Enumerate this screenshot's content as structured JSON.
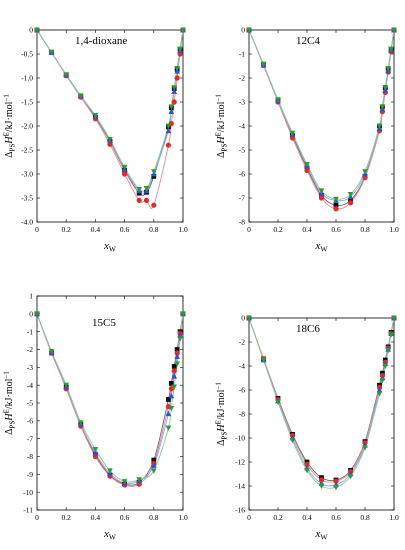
{
  "colors": {
    "black": "#111111",
    "red": "#e32a2a",
    "blue": "#2f4fd8",
    "green": "#2b9a3a",
    "fit_black": "#666666",
    "fit_red": "#e88a8a",
    "fit_blue": "#8ea2e8",
    "fit_green": "#8cc79a",
    "fit_dark": "#3a6b3a"
  },
  "shared_labels": {
    "xlabel_main": "x",
    "xlabel_sub": "W",
    "ylabel_delta": "Δ",
    "ylabel_sub": "PS",
    "ylabel_main": "H",
    "ylabel_sup": "E",
    "ylabel_unit": "/kJ·mol",
    "ylabel_unit_sup": "−1"
  },
  "chart_data": [
    {
      "type": "scatter",
      "title": "1,4-dioxane",
      "xlim": [
        0,
        1
      ],
      "ylim": [
        -4.0,
        0.0
      ],
      "x_ticks": [
        "0",
        "0.2",
        "0.4",
        "0.6",
        "0.8",
        "1.0"
      ],
      "x_tick_values": [
        0,
        0.2,
        0.4,
        0.6,
        0.8,
        1.0
      ],
      "y_ticks": [
        "0",
        "-0.5",
        "-1.0",
        "-1.5",
        "-2.0",
        "-2.5",
        "-3.0",
        "-3.5",
        "-4.0"
      ],
      "y_tick_values": [
        0,
        -0.5,
        -1.0,
        -1.5,
        -2.0,
        -2.5,
        -3.0,
        -3.5,
        -4.0
      ],
      "x": [
        0,
        0.1,
        0.2,
        0.3,
        0.4,
        0.5,
        0.6,
        0.7,
        0.75,
        0.8,
        0.9,
        0.92,
        0.94,
        0.96,
        0.98,
        1.0
      ],
      "series": [
        {
          "marker": "square",
          "color": "black",
          "values": [
            0,
            -0.47,
            -0.94,
            -1.38,
            -1.82,
            -2.32,
            -2.92,
            -3.4,
            -3.38,
            -3.05,
            -2.02,
            -1.62,
            -1.22,
            -0.82,
            -0.4,
            0
          ]
        },
        {
          "marker": "circle",
          "color": "red",
          "values": [
            0,
            -0.47,
            -0.95,
            -1.4,
            -1.85,
            -2.38,
            -3.0,
            -3.55,
            -3.55,
            -3.65,
            -2.4,
            -1.95,
            -1.5,
            -1.0,
            -0.5,
            0
          ]
        },
        {
          "marker": "triangle-up",
          "color": "blue",
          "values": [
            0,
            -0.47,
            -0.94,
            -1.38,
            -1.8,
            -2.3,
            -2.9,
            -3.35,
            -3.35,
            -3.0,
            -2.1,
            -1.7,
            -1.28,
            -0.86,
            -0.43,
            0
          ]
        },
        {
          "marker": "triangle-down",
          "color": "green",
          "values": [
            0,
            -0.46,
            -0.93,
            -1.37,
            -1.78,
            -2.28,
            -2.86,
            -3.32,
            -3.3,
            -2.95,
            -2.0,
            -1.6,
            -1.2,
            -0.8,
            -0.4,
            0
          ]
        }
      ]
    },
    {
      "type": "scatter",
      "title": "12C4",
      "xlim": [
        0,
        1
      ],
      "ylim": [
        -8,
        0
      ],
      "x_ticks": [
        "0",
        "0.2",
        "0.4",
        "0.6",
        "0.8",
        "1.0"
      ],
      "x_tick_values": [
        0,
        0.2,
        0.4,
        0.6,
        0.8,
        1.0
      ],
      "y_ticks": [
        "0",
        "-1",
        "-2",
        "-3",
        "-4",
        "-5",
        "-6",
        "-7",
        "-8"
      ],
      "y_tick_values": [
        0,
        -1,
        -2,
        -3,
        -4,
        -5,
        -6,
        -7,
        -8
      ],
      "x": [
        0,
        0.1,
        0.2,
        0.3,
        0.4,
        0.5,
        0.6,
        0.7,
        0.8,
        0.9,
        0.92,
        0.94,
        0.96,
        0.98,
        1.0
      ],
      "series": [
        {
          "marker": "square",
          "color": "black",
          "values": [
            0,
            -1.45,
            -2.95,
            -4.4,
            -5.75,
            -6.9,
            -7.3,
            -7.1,
            -6.1,
            -4.0,
            -3.2,
            -2.4,
            -1.6,
            -0.8,
            0
          ]
        },
        {
          "marker": "circle",
          "color": "red",
          "values": [
            0,
            -1.48,
            -3.0,
            -4.5,
            -5.85,
            -7.0,
            -7.45,
            -7.2,
            -6.15,
            -4.2,
            -3.4,
            -2.6,
            -1.75,
            -0.9,
            0
          ]
        },
        {
          "marker": "triangle-up",
          "color": "blue",
          "values": [
            0,
            -1.45,
            -2.95,
            -4.35,
            -5.65,
            -6.8,
            -7.1,
            -6.95,
            -6.0,
            -4.1,
            -3.3,
            -2.5,
            -1.7,
            -0.85,
            0
          ]
        },
        {
          "marker": "triangle-down",
          "color": "green",
          "values": [
            0,
            -1.42,
            -2.9,
            -4.3,
            -5.6,
            -6.7,
            -7.05,
            -6.85,
            -5.9,
            -4.0,
            -3.2,
            -2.4,
            -1.6,
            -0.8,
            0
          ]
        }
      ]
    },
    {
      "type": "scatter",
      "title": "15C5",
      "xlim": [
        0,
        1
      ],
      "ylim": [
        -11,
        1
      ],
      "x_ticks": [
        "0",
        "0.2",
        "0.4",
        "0.6",
        "0.8",
        "1.0"
      ],
      "x_tick_values": [
        0,
        0.2,
        0.4,
        0.6,
        0.8,
        1.0
      ],
      "y_ticks": [
        "1",
        "0",
        "-1",
        "-2",
        "-3",
        "-4",
        "-5",
        "-6",
        "-7",
        "-8",
        "-9",
        "-10",
        "-11"
      ],
      "y_tick_values": [
        1,
        0,
        -1,
        -2,
        -3,
        -4,
        -5,
        -6,
        -7,
        -8,
        -9,
        -10,
        -11
      ],
      "x": [
        0,
        0.1,
        0.2,
        0.3,
        0.4,
        0.5,
        0.6,
        0.7,
        0.8,
        0.9,
        0.92,
        0.94,
        0.96,
        0.98,
        1.0
      ],
      "series": [
        {
          "marker": "square",
          "color": "black",
          "values": [
            0,
            -2.2,
            -4.1,
            -6.2,
            -7.9,
            -9.05,
            -9.55,
            -9.45,
            -8.2,
            -4.8,
            -3.9,
            -2.95,
            -2.0,
            -1.0,
            0
          ]
        },
        {
          "marker": "circle",
          "color": "red",
          "values": [
            0,
            -2.2,
            -4.2,
            -6.3,
            -8.0,
            -9.1,
            -9.6,
            -9.55,
            -8.4,
            -5.2,
            -4.2,
            -3.2,
            -2.2,
            -1.1,
            0
          ]
        },
        {
          "marker": "triangle-up",
          "color": "blue",
          "values": [
            0,
            -2.15,
            -4.1,
            -6.2,
            -7.8,
            -8.95,
            -9.5,
            -9.35,
            -8.5,
            -5.6,
            -4.6,
            -3.5,
            -2.4,
            -1.2,
            0
          ]
        },
        {
          "marker": "triangle-down",
          "color": "green",
          "values": [
            0,
            -2.1,
            -4.0,
            -6.1,
            -7.6,
            -8.8,
            -9.4,
            -9.3,
            -8.8,
            -6.4,
            -5.3,
            -4.1,
            -2.8,
            -1.4,
            0
          ]
        }
      ]
    },
    {
      "type": "scatter",
      "title": "18C6",
      "xlim": [
        0,
        1
      ],
      "ylim": [
        -16,
        0
      ],
      "x_ticks": [
        "0",
        "0.2",
        "0.4",
        "0.6",
        "0.8",
        "1.0"
      ],
      "x_tick_values": [
        0,
        0.2,
        0.4,
        0.6,
        0.8,
        1.0
      ],
      "y_ticks": [
        "0",
        "-2",
        "-4",
        "-6",
        "-8",
        "-10",
        "-12",
        "-14",
        "-16"
      ],
      "y_tick_values": [
        0,
        -2,
        -4,
        -6,
        -8,
        -10,
        -12,
        -14,
        -16
      ],
      "x": [
        0,
        0.1,
        0.2,
        0.3,
        0.4,
        0.5,
        0.6,
        0.7,
        0.8,
        0.9,
        0.92,
        0.94,
        0.96,
        0.98,
        1.0
      ],
      "series": [
        {
          "marker": "square",
          "color": "black",
          "values": [
            0,
            -3.4,
            -6.7,
            -9.7,
            -12.0,
            -13.3,
            -13.5,
            -12.7,
            -10.3,
            -5.6,
            -4.6,
            -3.5,
            -2.4,
            -1.2,
            0
          ]
        },
        {
          "marker": "circle",
          "color": "red",
          "values": [
            0,
            -3.4,
            -6.8,
            -9.8,
            -12.2,
            -13.5,
            -13.6,
            -12.8,
            -10.4,
            -5.8,
            -4.8,
            -3.7,
            -2.5,
            -1.3,
            0
          ]
        },
        {
          "marker": "triangle-up",
          "color": "blue",
          "values": [
            0,
            -3.5,
            -6.9,
            -10.0,
            -12.5,
            -13.8,
            -13.9,
            -13.0,
            -10.6,
            -6.0,
            -5.0,
            -3.8,
            -2.6,
            -1.3,
            0
          ]
        },
        {
          "marker": "triangle-down",
          "color": "green",
          "values": [
            0,
            -3.5,
            -7.0,
            -10.2,
            -12.7,
            -14.0,
            -14.1,
            -13.2,
            -10.8,
            -6.3,
            -5.2,
            -4.0,
            -2.7,
            -1.4,
            0
          ]
        }
      ]
    }
  ]
}
